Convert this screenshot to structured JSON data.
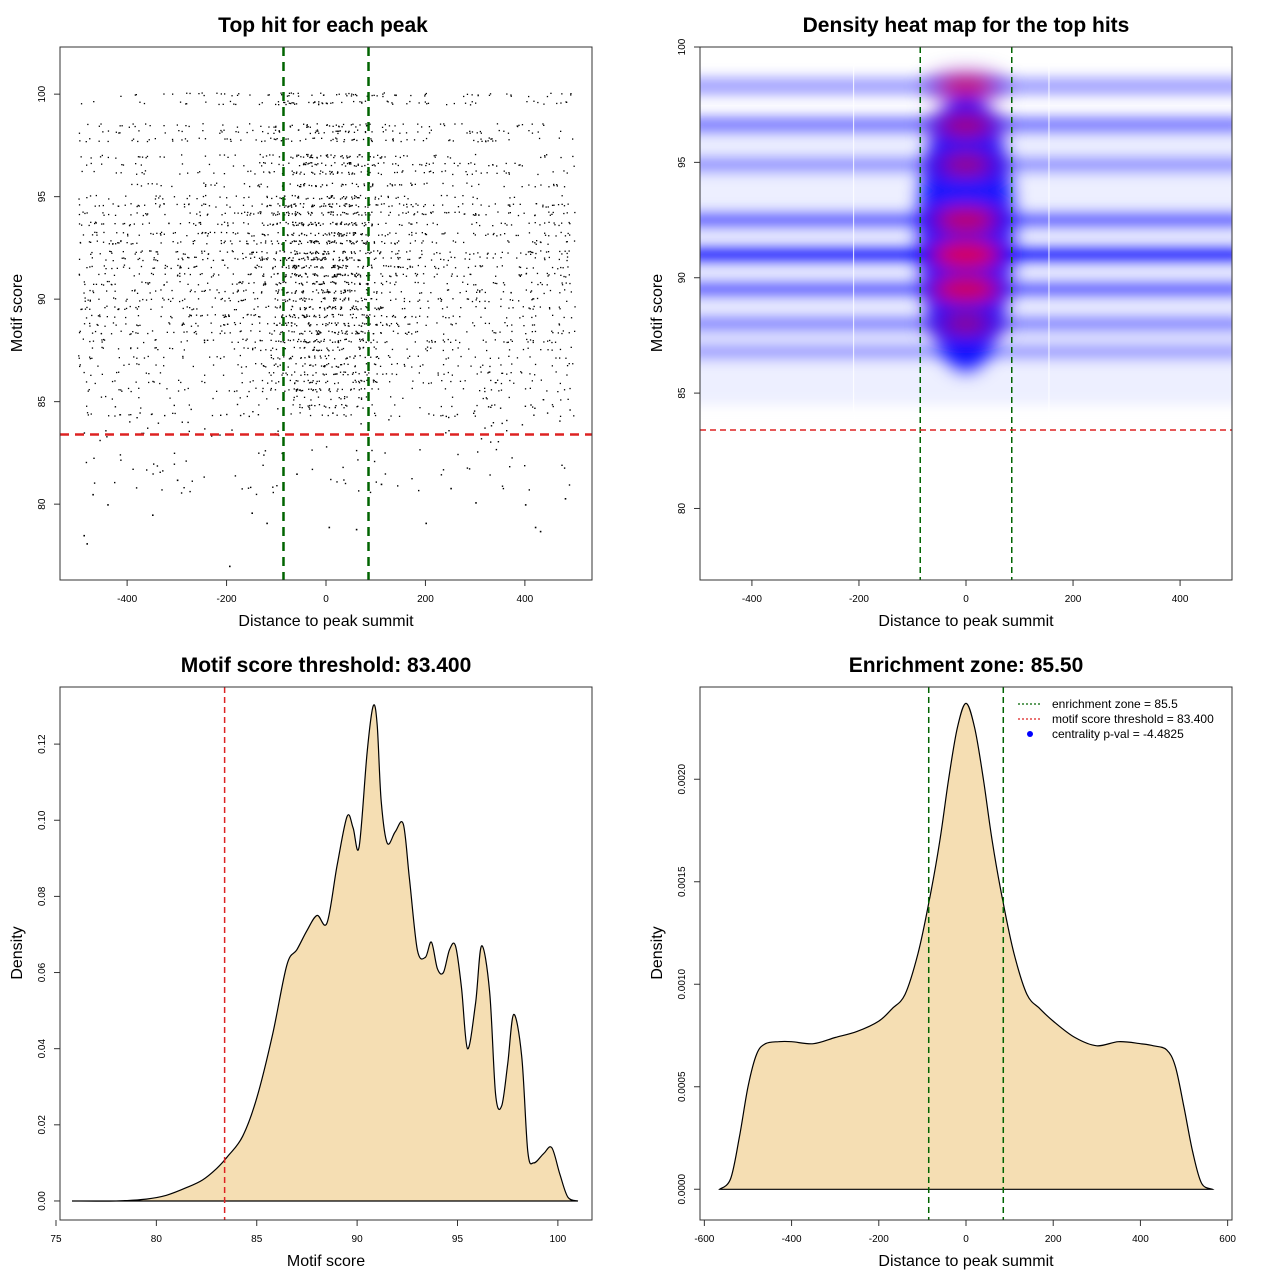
{
  "chart_data": [
    {
      "id": "p1",
      "type": "scatter",
      "title": "Top hit for each peak",
      "xlabel": "Distance to peak summit",
      "ylabel": "Motif score",
      "xlim": [
        -535,
        535
      ],
      "ylim": [
        76.3,
        102.3
      ],
      "xticks": [
        -400,
        -200,
        0,
        200,
        400
      ],
      "yticks": [
        80,
        85,
        90,
        95,
        100
      ],
      "vlines": [
        -85.5,
        85.5
      ],
      "hline": 83.4,
      "vline_color": "#006400",
      "hline_color": "#dd2222",
      "point_range_x": [
        -500,
        500
      ],
      "score_levels": [
        100.0,
        99.6,
        98.5,
        98.2,
        97.8,
        97.0,
        96.6,
        96.2,
        95.6,
        95.0,
        94.6,
        94.2,
        93.7,
        93.2,
        92.8,
        92.3,
        92.0,
        91.6,
        91.2,
        90.8,
        90.4,
        90.0,
        89.6,
        89.2,
        88.8,
        88.4,
        88.0,
        87.6,
        87.2,
        86.8,
        86.4,
        86.0,
        85.6,
        85.2,
        84.8,
        84.4
      ],
      "scatter_sparse_points": [
        {
          "x": -488,
          "y": 78.5
        },
        {
          "x": -482,
          "y": 78.1
        },
        {
          "x": -195,
          "y": 77.0
        },
        {
          "x": -470,
          "y": 80.5
        },
        {
          "x": -440,
          "y": 80.0
        },
        {
          "x": -350,
          "y": 79.5
        },
        {
          "x": -150,
          "y": 79.6
        },
        {
          "x": -120,
          "y": 79.1
        },
        {
          "x": 5,
          "y": 78.9
        },
        {
          "x": 60,
          "y": 78.8
        },
        {
          "x": 200,
          "y": 79.1
        },
        {
          "x": 300,
          "y": 80.1
        },
        {
          "x": 400,
          "y": 80.0
        },
        {
          "x": 420,
          "y": 78.9
        },
        {
          "x": 430,
          "y": 78.7
        },
        {
          "x": 480,
          "y": 80.3
        },
        {
          "x": -300,
          "y": 81.2
        },
        {
          "x": 250,
          "y": 80.8
        },
        {
          "x": -60,
          "y": 81.5
        },
        {
          "x": 110,
          "y": 81.0
        }
      ]
    },
    {
      "id": "p2",
      "type": "heatmap",
      "title": "Density heat map for the top hits",
      "xlabel": "Distance to peak summit",
      "ylabel": "Motif score",
      "xlim": [
        -497,
        497
      ],
      "ylim": [
        76.9,
        100.0
      ],
      "xticks": [
        -400,
        -200,
        0,
        200,
        400
      ],
      "yticks": [
        80,
        85,
        90,
        95,
        100
      ],
      "vlines": [
        -85.5,
        85.5
      ],
      "hline": 83.4,
      "vline_color": "#006400",
      "hline_color": "#dd2222",
      "white_vlines": [
        -210,
        155
      ],
      "hotspots": [
        {
          "x": 0,
          "y": 98.3,
          "intensity": 0.75
        },
        {
          "x": 0,
          "y": 96.6,
          "intensity": 0.7
        },
        {
          "x": 0,
          "y": 94.9,
          "intensity": 0.65
        },
        {
          "x": 0,
          "y": 92.5,
          "intensity": 0.85
        },
        {
          "x": 0,
          "y": 91.0,
          "intensity": 1.0
        },
        {
          "x": 0,
          "y": 89.5,
          "intensity": 0.95
        },
        {
          "x": 0,
          "y": 88.0,
          "intensity": 0.6
        }
      ],
      "bands": [
        {
          "y": 98.3,
          "strength": 0.35
        },
        {
          "y": 96.6,
          "strength": 0.45
        },
        {
          "y": 94.9,
          "strength": 0.35
        },
        {
          "y": 92.5,
          "strength": 0.55
        },
        {
          "y": 91.0,
          "strength": 0.9
        },
        {
          "y": 89.5,
          "strength": 0.55
        },
        {
          "y": 88.0,
          "strength": 0.4
        },
        {
          "y": 86.8,
          "strength": 0.3
        }
      ]
    },
    {
      "id": "p3",
      "type": "area",
      "title": "Motif score threshold: 83.400",
      "xlabel": "Motif score",
      "ylabel": "Density",
      "xlim": [
        75.2,
        101.7
      ],
      "ylim": [
        -0.005,
        0.135
      ],
      "xticks": [
        75,
        80,
        85,
        90,
        95,
        100
      ],
      "yticks": [
        0.0,
        0.02,
        0.04,
        0.06,
        0.08,
        0.1,
        0.12
      ],
      "ytick_labels": [
        "0.00",
        "0.02",
        "0.04",
        "0.06",
        "0.08",
        "0.10",
        "0.12"
      ],
      "vline": 83.4,
      "vline_color": "#dd2222",
      "fill_color": "#f5deb3",
      "x": [
        75.8,
        78.0,
        79.5,
        80.5,
        81.5,
        82.3,
        83.0,
        83.6,
        84.3,
        85.0,
        85.8,
        86.5,
        87.0,
        87.5,
        88.0,
        88.5,
        89.0,
        89.5,
        89.8,
        90.1,
        90.5,
        90.8,
        91.0,
        91.2,
        91.5,
        91.9,
        92.3,
        92.6,
        93.0,
        93.4,
        93.7,
        94.0,
        94.3,
        94.6,
        94.9,
        95.2,
        95.5,
        95.9,
        96.2,
        96.6,
        96.9,
        97.2,
        97.5,
        97.8,
        98.2,
        98.5,
        98.8,
        99.3,
        99.7,
        100.1,
        100.5,
        101.0
      ],
      "y": [
        0.0,
        0.0,
        0.0005,
        0.0015,
        0.0035,
        0.0055,
        0.0085,
        0.012,
        0.017,
        0.027,
        0.044,
        0.062,
        0.066,
        0.071,
        0.075,
        0.073,
        0.088,
        0.101,
        0.098,
        0.093,
        0.118,
        0.13,
        0.125,
        0.105,
        0.094,
        0.097,
        0.099,
        0.085,
        0.066,
        0.064,
        0.068,
        0.061,
        0.06,
        0.066,
        0.067,
        0.056,
        0.04,
        0.052,
        0.067,
        0.055,
        0.028,
        0.025,
        0.036,
        0.049,
        0.038,
        0.013,
        0.01,
        0.0125,
        0.014,
        0.007,
        0.001,
        0.0
      ]
    },
    {
      "id": "p4",
      "type": "area",
      "title": "Enrichment zone: 85.50",
      "xlabel": "Distance to peak summit",
      "ylabel": "Density",
      "xlim": [
        -610,
        610
      ],
      "ylim": [
        -0.00015,
        0.00245
      ],
      "xticks": [
        -600,
        -400,
        -200,
        0,
        200,
        400,
        600
      ],
      "yticks": [
        0.0,
        0.0005,
        0.001,
        0.0015,
        0.002
      ],
      "ytick_labels": [
        "0.0000",
        "0.0005",
        "0.0010",
        "0.0015",
        "0.0020"
      ],
      "vlines": [
        -85.5,
        85.5
      ],
      "vline_color": "#006400",
      "fill_color": "#f5deb3",
      "x": [
        -565,
        -540,
        -520,
        -500,
        -480,
        -460,
        -430,
        -400,
        -350,
        -300,
        -250,
        -200,
        -170,
        -140,
        -110,
        -85,
        -60,
        -40,
        -20,
        0,
        20,
        40,
        60,
        85,
        110,
        140,
        170,
        200,
        250,
        300,
        350,
        400,
        430,
        460,
        480,
        500,
        520,
        540,
        565
      ],
      "y": [
        0.0,
        5e-05,
        0.00025,
        0.0005,
        0.00066,
        0.00071,
        0.00072,
        0.00072,
        0.00071,
        0.00074,
        0.00077,
        0.00082,
        0.00088,
        0.00095,
        0.00115,
        0.0014,
        0.0017,
        0.002,
        0.00225,
        0.00237,
        0.00225,
        0.002,
        0.0017,
        0.0014,
        0.00115,
        0.00095,
        0.00088,
        0.00082,
        0.00074,
        0.0007,
        0.00072,
        0.00071,
        0.0007,
        0.00068,
        0.0006,
        0.0004,
        0.00018,
        3e-05,
        0.0
      ]
    }
  ],
  "legend": {
    "items": [
      {
        "label": "enrichment zone = 85.5",
        "color": "#006400",
        "style": "dotted-line"
      },
      {
        "label": "motif score threshold = 83.400",
        "color": "#dd2222",
        "style": "dotted-line"
      },
      {
        "label": "centrality p-val = -4.4825",
        "color": "#0000ff",
        "style": "dot"
      }
    ]
  }
}
